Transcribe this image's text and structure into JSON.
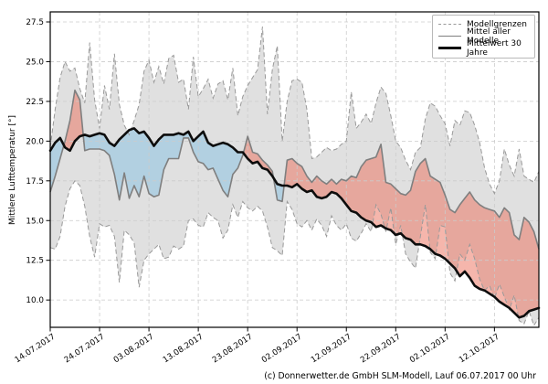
{
  "chart_data": {
    "type": "area",
    "title": "",
    "ylabel": "Mittlere Lufttemperatur [°]",
    "xlabel": "",
    "grid": true,
    "legend_position": "top-right",
    "legend": [
      "Modellgrenzen",
      "Mittel aller Modelle",
      "Mittelwert 30 Jahre"
    ],
    "y_ticks": [
      10.0,
      12.5,
      15.0,
      17.5,
      20.0,
      22.5,
      25.0,
      27.5
    ],
    "ylim": [
      8.3,
      28.1
    ],
    "x_tick_labels": [
      "14.07.2017",
      "24.07.2017",
      "03.08.2017",
      "13.08.2017",
      "23.08.2017",
      "02.09.2017",
      "12.09.2017",
      "22.09.2017",
      "02.10.2017",
      "12.10.2017"
    ],
    "x_tick_days": [
      0,
      10,
      20,
      30,
      40,
      50,
      60,
      70,
      80,
      90
    ],
    "days": 100,
    "colors": {
      "envelope_fill": "#e0e0e0",
      "above_normal_fill": "rgba(235,110,90,0.5)",
      "below_normal_fill": "rgba(140,195,225,0.55)",
      "bounds_line": "#999999",
      "model_mean_line": "#7f7f7f",
      "mean30_line": "#0d0d0d",
      "grid_line": "#cbcbcb",
      "frame": "#000000"
    },
    "series": [
      {
        "name": "Modellgrenzen (obere Grenze)",
        "values": [
          19.6,
          22.0,
          24.0,
          25.0,
          24.4,
          24.6,
          23.3,
          22.4,
          26.2,
          22.6,
          20.8,
          23.5,
          22.0,
          25.5,
          22.3,
          21.0,
          20.4,
          21.3,
          22.3,
          24.4,
          25.1,
          23.7,
          24.7,
          23.6,
          25.2,
          25.4,
          23.7,
          23.9,
          22.0,
          25.3,
          22.8,
          23.3,
          23.9,
          22.7,
          23.6,
          23.8,
          22.6,
          24.6,
          21.6,
          22.8,
          23.5,
          24.0,
          24.5,
          27.2,
          21.7,
          24.5,
          26.0,
          20.0,
          22.5,
          23.8,
          23.9,
          23.7,
          22.0,
          18.9,
          19.0,
          19.3,
          19.6,
          19.4,
          19.5,
          19.8,
          20.0,
          23.1,
          20.8,
          21.2,
          21.7,
          21.1,
          22.4,
          23.4,
          23.0,
          21.6,
          20.0,
          19.6,
          18.8,
          18.2,
          19.3,
          19.6,
          21.4,
          22.4,
          22.2,
          21.6,
          21.1,
          19.7,
          21.3,
          21.0,
          21.9,
          21.8,
          21.0,
          19.9,
          18.3,
          17.3,
          16.7,
          17.5,
          19.5,
          18.5,
          17.8,
          19.5,
          17.8,
          17.6,
          17.4,
          18.1
        ]
      },
      {
        "name": "Modellgrenzen (untere Grenze)",
        "values": [
          13.3,
          13.2,
          14.0,
          15.9,
          17.0,
          17.5,
          17.2,
          15.9,
          14.0,
          12.7,
          14.8,
          14.6,
          14.7,
          14.0,
          11.1,
          14.4,
          14.1,
          13.6,
          10.8,
          12.5,
          12.9,
          13.2,
          13.5,
          12.6,
          12.7,
          13.4,
          13.2,
          13.4,
          15.0,
          15.1,
          14.7,
          14.6,
          15.5,
          15.2,
          15.0,
          13.9,
          14.4,
          16.0,
          15.2,
          16.2,
          15.8,
          15.6,
          15.9,
          15.6,
          14.6,
          13.3,
          13.1,
          12.8,
          16.2,
          15.7,
          14.8,
          14.6,
          15.0,
          14.4,
          15.1,
          14.7,
          14.0,
          15.3,
          14.7,
          14.4,
          14.8,
          13.9,
          13.7,
          14.2,
          14.8,
          14.3,
          16.0,
          15.4,
          14.3,
          15.8,
          13.5,
          14.7,
          12.9,
          12.4,
          12.0,
          14.0,
          16.0,
          13.0,
          12.6,
          14.7,
          14.6,
          11.7,
          11.2,
          12.9,
          12.5,
          13.5,
          12.6,
          11.3,
          10.6,
          10.9,
          10.1,
          11.0,
          10.2,
          9.4,
          10.3,
          8.7,
          8.5,
          9.3,
          8.4,
          8.9
        ]
      },
      {
        "name": "Mittel aller Modelle",
        "values": [
          16.8,
          17.8,
          18.9,
          20.0,
          21.3,
          23.2,
          22.6,
          19.4,
          19.5,
          19.5,
          19.5,
          19.4,
          19.1,
          17.9,
          16.3,
          18.0,
          16.4,
          17.2,
          16.5,
          17.8,
          16.7,
          16.5,
          16.6,
          18.2,
          18.9,
          18.9,
          18.9,
          20.2,
          20.2,
          19.3,
          18.7,
          18.6,
          18.2,
          18.3,
          17.6,
          16.9,
          16.5,
          17.9,
          18.3,
          19.1,
          20.3,
          19.3,
          19.2,
          18.8,
          18.5,
          18.1,
          16.3,
          16.2,
          18.8,
          18.9,
          18.6,
          18.4,
          17.8,
          17.4,
          17.8,
          17.5,
          17.3,
          17.6,
          17.3,
          17.6,
          17.5,
          17.8,
          17.7,
          18.4,
          18.8,
          18.9,
          19.0,
          19.8,
          17.4,
          17.3,
          17.0,
          16.7,
          16.6,
          16.9,
          18.1,
          18.6,
          18.9,
          17.8,
          17.6,
          17.4,
          16.6,
          15.7,
          15.5,
          16.0,
          16.4,
          16.8,
          16.3,
          16.0,
          15.8,
          15.7,
          15.6,
          15.2,
          15.8,
          15.5,
          14.1,
          13.8,
          15.2,
          14.9,
          14.3,
          13.2
        ]
      },
      {
        "name": "Mittelwert 30 Jahre",
        "values": [
          19.4,
          19.9,
          20.2,
          19.6,
          19.4,
          20.0,
          20.3,
          20.4,
          20.3,
          20.4,
          20.5,
          20.4,
          19.9,
          19.7,
          20.1,
          20.4,
          20.7,
          20.8,
          20.5,
          20.6,
          20.2,
          19.7,
          20.1,
          20.4,
          20.4,
          20.4,
          20.5,
          20.4,
          20.6,
          20.0,
          20.3,
          20.6,
          19.9,
          19.7,
          19.8,
          19.9,
          19.8,
          19.6,
          19.3,
          19.3,
          18.9,
          18.6,
          18.7,
          18.3,
          18.2,
          17.8,
          17.3,
          17.2,
          17.2,
          17.1,
          17.3,
          17.0,
          16.8,
          16.9,
          16.5,
          16.4,
          16.5,
          16.8,
          16.7,
          16.4,
          16.0,
          15.6,
          15.5,
          15.2,
          15.0,
          14.9,
          14.6,
          14.7,
          14.5,
          14.4,
          14.1,
          14.2,
          13.9,
          13.8,
          13.5,
          13.5,
          13.4,
          13.2,
          12.9,
          12.8,
          12.6,
          12.3,
          12.0,
          11.5,
          11.8,
          11.4,
          10.9,
          10.7,
          10.6,
          10.4,
          10.2,
          9.9,
          9.7,
          9.5,
          9.2,
          8.9,
          9.0,
          9.3,
          9.4,
          9.5
        ]
      }
    ]
  },
  "footer": {
    "credit": "(c) Donnerwetter.de GmbH SLM-Modell, Lauf 06.07.2017 00 Uhr"
  }
}
